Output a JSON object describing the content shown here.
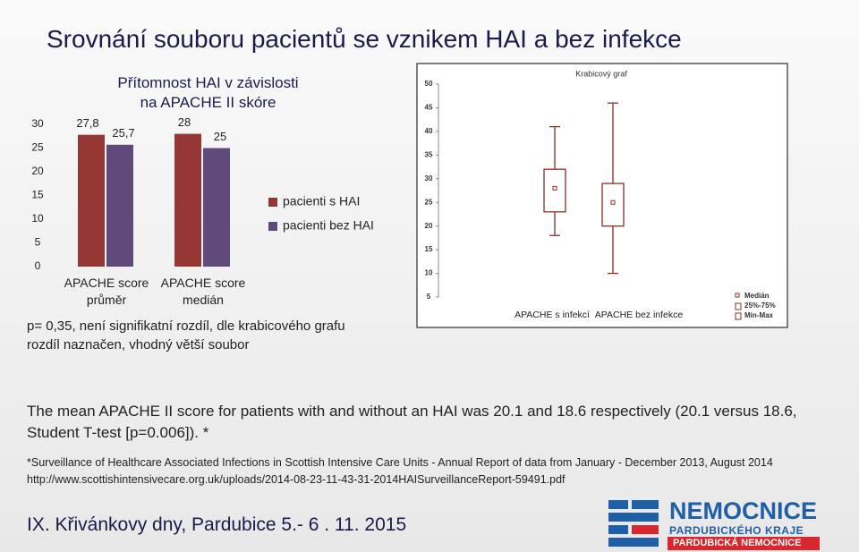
{
  "title": "Srovnání souboru pacientů  se vznikem HAI a bez infekce",
  "chart_data": [
    {
      "type": "bar",
      "title": "Přítomnost HAI v závislosti na APACHE II skóre",
      "categories": [
        "APACHE score průměr",
        "APACHE score medián"
      ],
      "series": [
        {
          "name": "pacienti s HAI",
          "color": "#953735",
          "values": [
            27.8,
            28
          ],
          "value_labels": [
            "27,8",
            "28"
          ]
        },
        {
          "name": "pacienti bez HAI",
          "color": "#604a7b",
          "values": [
            25.7,
            25
          ],
          "value_labels": [
            "25,7",
            "25"
          ]
        }
      ],
      "ylim": [
        0,
        30
      ],
      "yticks": [
        0,
        5,
        10,
        15,
        20,
        25,
        30
      ],
      "legend": "right"
    },
    {
      "type": "box",
      "title": "Krabicový graf",
      "categories": [
        "APACHE s infekcí",
        "APACHE bez infekce"
      ],
      "median": [
        28,
        25
      ],
      "q1": [
        23,
        20
      ],
      "q3": [
        32,
        29
      ],
      "min": [
        18,
        10
      ],
      "max": [
        41,
        46
      ],
      "color": "#8b2e24",
      "legend_labels": [
        "Medián",
        "25%-75%",
        "Min-Max"
      ],
      "ylim": [
        5,
        50
      ],
      "yticks": [
        5,
        10,
        15,
        20,
        25,
        30,
        35,
        40,
        45,
        50
      ]
    }
  ],
  "note": "p= 0,35, není signifikatní rozdíl, dle krabicového grafu rozdíl naznačen, vhodný větší soubor",
  "summary": "The mean APACHE II score for patients with and without an HAI was 20.1 and 18.6 respectively (20.1 versus 18.6, Student T-test [p=0.006]). *",
  "footnote": "*Surveillance of Healthcare Associated Infections in Scottish Intensive Care Units - Annual Report of data from January - December 2013, August 2014 http://www.scottishintensivecare.org.uk/uploads/2014-08-23-11-43-31-2014HAISurveillanceReport-59491.pdf",
  "footer": "IX. Křivánkovy dny, Pardubice 5.- 6 . 11. 2015",
  "logo": {
    "line1": "NEMOCNICE",
    "line2": "PARDUBICKÉHO KRAJE",
    "line3": "PARDUBICKÁ NEMOCNICE"
  }
}
